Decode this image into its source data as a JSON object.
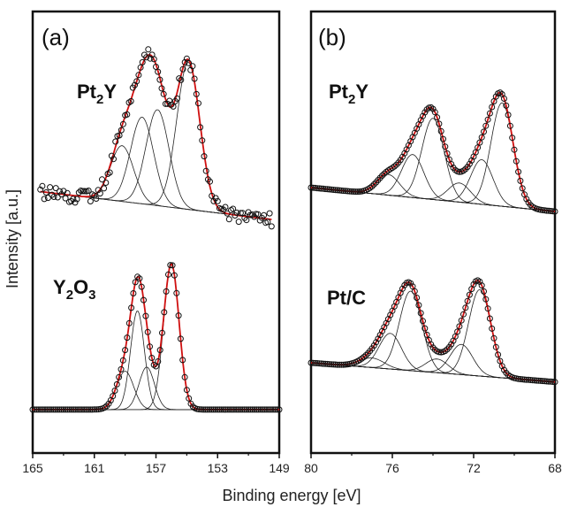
{
  "ylabel": "Intensity [a.u.]",
  "xlabel": "Binding energy [eV]",
  "chart_data": [
    {
      "type": "line",
      "panel": "(a)",
      "xlim": [
        165,
        149
      ],
      "x_ticks": [
        "165",
        "161",
        "157",
        "153",
        "149"
      ],
      "ylabel": "Intensity [a.u.]",
      "xlabel": "Binding energy [eV]",
      "grid": false,
      "spectra": [
        {
          "name": "Pt2Y",
          "label_main": "Pt",
          "label_sub": "2",
          "label_tail": "Y",
          "baseline": [
            [
              164.5,
              0.18
            ],
            [
              149.5,
              0.0
            ]
          ],
          "components": [
            {
              "center": 159.2,
              "amp": 0.36,
              "width": 0.75
            },
            {
              "center": 157.9,
              "amp": 0.56,
              "width": 0.75
            },
            {
              "center": 156.9,
              "amp": 0.62,
              "width": 0.75
            },
            {
              "center": 154.9,
              "amp": 0.95,
              "width": 0.75
            }
          ],
          "noise": 0.045
        },
        {
          "name": "Y2O3",
          "label_main": "Y",
          "label_sub": "2",
          "label_tail": "O",
          "label_sub2": "3",
          "baseline": [
            [
              165,
              0.02
            ],
            [
              149,
              0.02
            ]
          ],
          "components": [
            {
              "center": 159.0,
              "amp": 0.28,
              "width": 0.55
            },
            {
              "center": 158.2,
              "amp": 0.72,
              "width": 0.45
            },
            {
              "center": 157.6,
              "amp": 0.31,
              "width": 0.5
            },
            {
              "center": 156.0,
              "amp": 1.06,
              "width": 0.5
            }
          ],
          "noise": 0.0
        }
      ]
    },
    {
      "type": "line",
      "panel": "(b)",
      "xlim": [
        80,
        68
      ],
      "x_ticks": [
        "80",
        "76",
        "72",
        "68"
      ],
      "grid": false,
      "spectra": [
        {
          "name": "Pt2Y",
          "label_main": "Pt",
          "label_sub": "2",
          "label_tail": "Y",
          "baseline": [
            [
              80,
              0.0
            ],
            [
              68,
              -0.15
            ]
          ],
          "components": [
            {
              "center": 76.2,
              "amp": 0.13,
              "width": 0.55
            },
            {
              "center": 75.0,
              "amp": 0.27,
              "width": 0.55
            },
            {
              "center": 74.0,
              "amp": 0.51,
              "width": 0.55
            },
            {
              "center": 72.7,
              "amp": 0.12,
              "width": 0.55
            },
            {
              "center": 71.6,
              "amp": 0.28,
              "width": 0.55
            },
            {
              "center": 70.6,
              "amp": 0.65,
              "width": 0.55
            }
          ],
          "noise": 0.0
        },
        {
          "name": "Pt/C",
          "label_main": "Pt/C",
          "baseline": [
            [
              80,
              0.0
            ],
            [
              68,
              -0.14
            ]
          ],
          "components": [
            {
              "center": 77.0,
              "amp": 0.07,
              "width": 0.6
            },
            {
              "center": 76.1,
              "amp": 0.26,
              "width": 0.55
            },
            {
              "center": 75.1,
              "amp": 0.58,
              "width": 0.55
            },
            {
              "center": 73.8,
              "amp": 0.1,
              "width": 0.55
            },
            {
              "center": 72.6,
              "amp": 0.22,
              "width": 0.55
            },
            {
              "center": 71.7,
              "amp": 0.63,
              "width": 0.55
            }
          ],
          "noise": 0.0
        }
      ]
    }
  ],
  "colors": {
    "envelope": "#d01010",
    "component": "#222222",
    "points": "#111111"
  }
}
